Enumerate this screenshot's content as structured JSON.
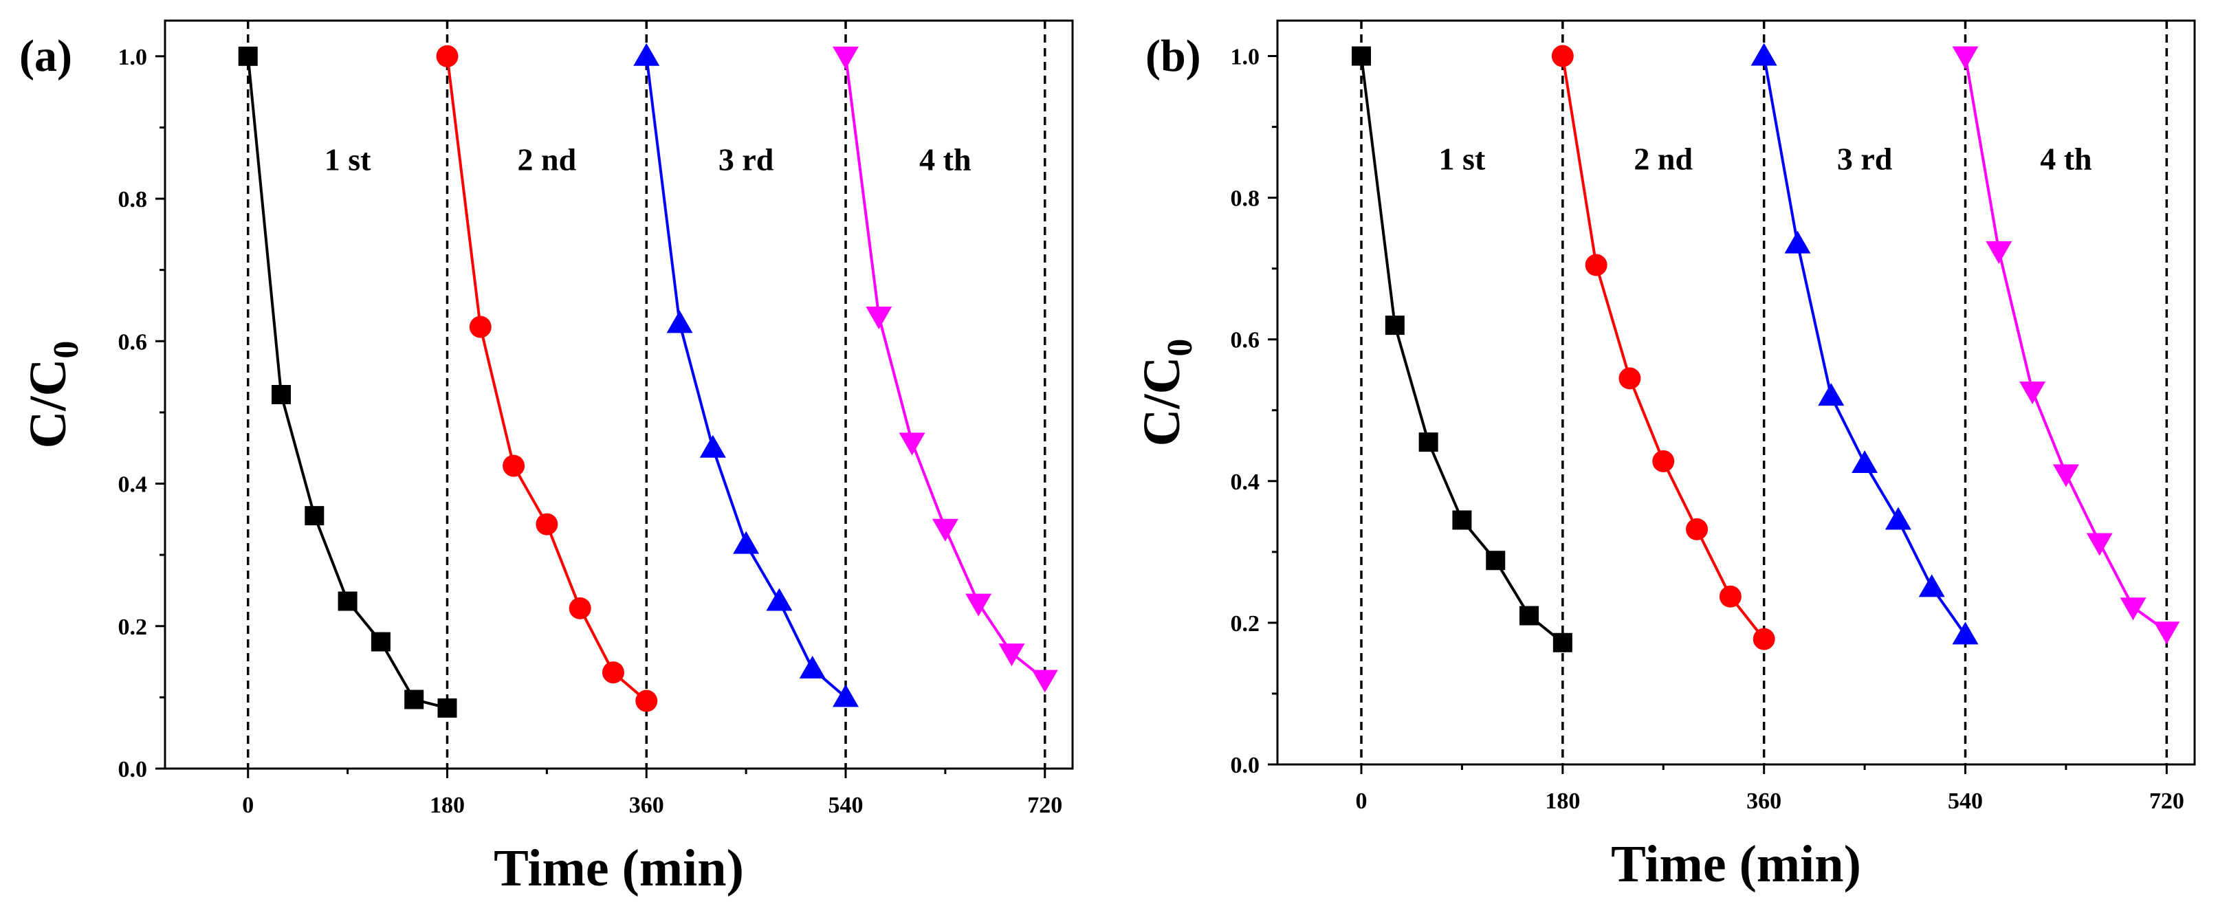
{
  "chart_data": [
    {
      "type": "line",
      "panel_label": "(a)",
      "xlabel": "Time (min)",
      "ylabel": "C/C",
      "ylabel_sub": "0",
      "xlim": [
        -75,
        745
      ],
      "ylim": [
        0,
        1.05
      ],
      "xticks": [
        0,
        180,
        360,
        540,
        720
      ],
      "yticks": [
        0.0,
        0.2,
        0.4,
        0.6,
        0.8,
        1.0
      ],
      "ytick_labels": [
        "0.0",
        "0.2",
        "0.4",
        "0.6",
        "0.8",
        "1.0"
      ],
      "dividers": [
        0,
        180,
        360,
        540,
        720
      ],
      "cycle_labels": [
        {
          "text": "1 st",
          "x": 90
        },
        {
          "text": "2 nd",
          "x": 270
        },
        {
          "text": "3 rd",
          "x": 450
        },
        {
          "text": "4 th",
          "x": 630
        }
      ],
      "series": [
        {
          "name": "1 st",
          "color": "#000000",
          "marker": "square",
          "x": [
            0,
            30,
            60,
            90,
            120,
            150,
            180
          ],
          "y": [
            1.0,
            0.525,
            0.355,
            0.235,
            0.178,
            0.097,
            0.085
          ]
        },
        {
          "name": "2 nd",
          "color": "#ff0000",
          "marker": "circle",
          "x": [
            180,
            210,
            240,
            270,
            300,
            330,
            360
          ],
          "y": [
            1.0,
            0.62,
            0.425,
            0.343,
            0.225,
            0.135,
            0.095
          ]
        },
        {
          "name": "3 rd",
          "color": "#0000ff",
          "marker": "triangle-up",
          "x": [
            360,
            390,
            420,
            450,
            480,
            510,
            540
          ],
          "y": [
            1.0,
            0.625,
            0.45,
            0.315,
            0.235,
            0.14,
            0.1
          ]
        },
        {
          "name": "4 th",
          "color": "#ff00ff",
          "marker": "triangle-down",
          "x": [
            540,
            570,
            600,
            630,
            660,
            690,
            720
          ],
          "y": [
            1.0,
            0.635,
            0.458,
            0.337,
            0.232,
            0.162,
            0.125
          ]
        }
      ]
    },
    {
      "type": "line",
      "panel_label": "(b)",
      "xlabel": "Time (min)",
      "ylabel": "C/C",
      "ylabel_sub": "0",
      "xlim": [
        -75,
        745
      ],
      "ylim": [
        0,
        1.05
      ],
      "xticks": [
        0,
        180,
        360,
        540,
        720
      ],
      "yticks": [
        0.0,
        0.2,
        0.4,
        0.6,
        0.8,
        1.0
      ],
      "ytick_labels": [
        "0.0",
        "0.2",
        "0.4",
        "0.6",
        "0.8",
        "1.0"
      ],
      "dividers": [
        0,
        180,
        360,
        540,
        720
      ],
      "cycle_labels": [
        {
          "text": "1 st",
          "x": 90
        },
        {
          "text": "2 nd",
          "x": 270
        },
        {
          "text": "3 rd",
          "x": 450
        },
        {
          "text": "4 th",
          "x": 630
        }
      ],
      "series": [
        {
          "name": "1 st",
          "color": "#000000",
          "marker": "square",
          "x": [
            0,
            30,
            60,
            90,
            120,
            150,
            180
          ],
          "y": [
            1.0,
            0.62,
            0.455,
            0.345,
            0.288,
            0.21,
            0.172
          ]
        },
        {
          "name": "2 nd",
          "color": "#ff0000",
          "marker": "circle",
          "x": [
            180,
            210,
            240,
            270,
            300,
            330,
            360
          ],
          "y": [
            1.0,
            0.705,
            0.545,
            0.428,
            0.332,
            0.237,
            0.177
          ]
        },
        {
          "name": "3 rd",
          "color": "#0000ff",
          "marker": "triangle-up",
          "x": [
            360,
            390,
            420,
            450,
            480,
            510,
            540
          ],
          "y": [
            1.0,
            0.735,
            0.52,
            0.425,
            0.345,
            0.25,
            0.183
          ]
        },
        {
          "name": "4 th",
          "color": "#ff00ff",
          "marker": "triangle-down",
          "x": [
            540,
            570,
            600,
            630,
            660,
            690,
            720
          ],
          "y": [
            1.0,
            0.725,
            0.527,
            0.41,
            0.313,
            0.222,
            0.188
          ]
        }
      ]
    }
  ]
}
